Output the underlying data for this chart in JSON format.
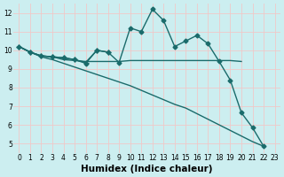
{
  "xlabel": "Humidex (Indice chaleur)",
  "bg_color": "#cceef0",
  "grid_color": "#f0c8c8",
  "line_color": "#1a6b6b",
  "lines": [
    {
      "x": [
        0,
        1,
        2,
        3,
        4,
        5,
        6,
        7,
        8,
        9,
        10,
        11,
        12,
        13,
        14,
        15,
        16,
        17,
        18,
        19,
        20,
        21,
        22,
        23
      ],
      "y": [
        10.2,
        9.9,
        9.7,
        9.65,
        9.6,
        9.5,
        9.3,
        10.0,
        9.9,
        9.35,
        11.2,
        11.0,
        12.2,
        11.6,
        10.2,
        10.5,
        10.8,
        10.35,
        9.4,
        8.4,
        6.65,
        5.85,
        4.85,
        null
      ],
      "marker": "D",
      "markersize": 2.5,
      "lw": 1.0
    },
    {
      "x": [
        0,
        1,
        2,
        3,
        4,
        5,
        6,
        7,
        8,
        9,
        10,
        11,
        12,
        13,
        14,
        15,
        16,
        17,
        18,
        19,
        20
      ],
      "y": [
        10.2,
        9.9,
        9.7,
        9.65,
        9.5,
        9.45,
        9.4,
        9.4,
        9.4,
        9.4,
        9.45,
        9.45,
        9.45,
        9.45,
        9.45,
        9.45,
        9.45,
        9.45,
        9.45,
        9.45,
        9.4
      ],
      "marker": null,
      "markersize": 0,
      "lw": 1.0
    },
    {
      "x": [
        0,
        1,
        2,
        3,
        4,
        5,
        6,
        7,
        8,
        9,
        10,
        11,
        12,
        13,
        14,
        15,
        16,
        17,
        18,
        19,
        20,
        21,
        22,
        23
      ],
      "y": [
        10.2,
        9.9,
        9.65,
        9.5,
        9.3,
        9.1,
        8.9,
        8.7,
        8.5,
        8.3,
        8.1,
        7.85,
        7.6,
        7.35,
        7.1,
        6.9,
        6.6,
        6.3,
        6.0,
        5.7,
        5.4,
        5.1,
        4.85,
        null
      ],
      "marker": null,
      "markersize": 0,
      "lw": 1.0
    },
    {
      "x": [
        0,
        1,
        2,
        3,
        4,
        5,
        6,
        7,
        8
      ],
      "y": [
        10.2,
        9.9,
        9.7,
        9.65,
        9.6,
        9.5,
        9.35,
        10.0,
        9.9
      ],
      "marker": "+",
      "markersize": 4,
      "lw": 1.0
    }
  ],
  "xlim": [
    -0.5,
    23.5
  ],
  "ylim": [
    4.5,
    12.5
  ],
  "xticks": [
    0,
    1,
    2,
    3,
    4,
    5,
    6,
    7,
    8,
    9,
    10,
    11,
    12,
    13,
    14,
    15,
    16,
    17,
    18,
    19,
    20,
    21,
    22,
    23
  ],
  "yticks": [
    5,
    6,
    7,
    8,
    9,
    10,
    11,
    12
  ],
  "tick_fontsize": 5.5,
  "xlabel_fontsize": 7.5
}
